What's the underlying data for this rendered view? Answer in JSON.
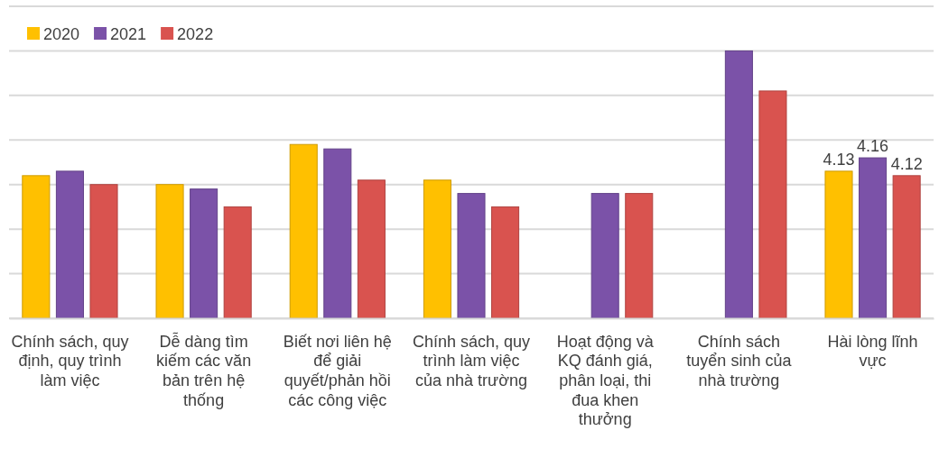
{
  "chart_data": {
    "type": "bar",
    "categories": [
      "Chính sách, quy định, quy trình làm việc",
      "Dễ dàng tìm kiếm các văn bản trên hệ thống",
      "Biết nơi liên hệ để giải quyết/phản hồi các công việc",
      "Chính sách, quy trình làm việc của nhà trường",
      "Hoạt động và KQ đánh giá, phân loại, thi đua khen thưởng",
      "Chính sách tuyển sinh của nhà trường",
      "Hài lòng lĩnh vực"
    ],
    "series": [
      {
        "name": "2020",
        "color": "#ffc000",
        "values": [
          4.12,
          4.1,
          4.19,
          4.11,
          null,
          null,
          4.13
        ],
        "value_labels": [
          null,
          null,
          null,
          null,
          null,
          null,
          "4.13"
        ]
      },
      {
        "name": "2021",
        "color": "#7b52a8",
        "values": [
          4.13,
          4.09,
          4.18,
          4.08,
          4.08,
          4.4,
          4.16
        ],
        "value_labels": [
          null,
          null,
          null,
          null,
          null,
          null,
          "4.16"
        ]
      },
      {
        "name": "2022",
        "color": "#d9534f",
        "values": [
          4.1,
          4.05,
          4.11,
          4.05,
          4.08,
          4.31,
          4.12
        ],
        "value_labels": [
          null,
          null,
          null,
          null,
          null,
          null,
          "4.12"
        ]
      }
    ],
    "ylim": [
      3.8,
      4.5
    ],
    "yticks": [
      {
        "value": 3.8,
        "label": null
      },
      {
        "value": 3.9,
        "label": null
      },
      {
        "value": 4.0,
        "label": null
      },
      {
        "value": 4.1,
        "label": null
      },
      {
        "value": 4.2,
        "label": null
      },
      {
        "value": 4.3,
        "label": null
      },
      {
        "value": 4.4,
        "label": null
      },
      {
        "value": 4.5,
        "label": null
      }
    ],
    "tick_labels": "x",
    "grid": "y",
    "legend": "top left"
  }
}
